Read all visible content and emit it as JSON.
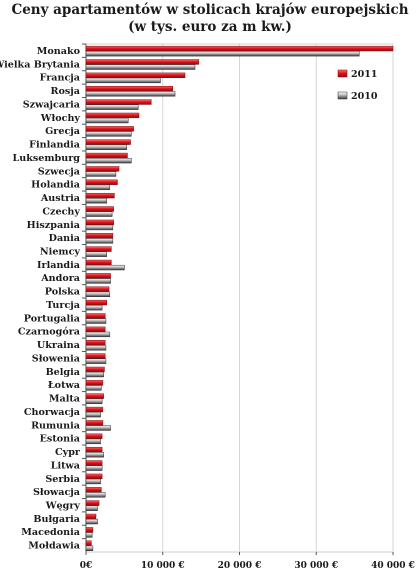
{
  "chart_data": {
    "type": "bar",
    "orientation": "horizontal",
    "title": "Ceny apartamentów w stolicach krajów europejskich",
    "subtitle": "(w tys. euro za m kw.)",
    "xlabel": "",
    "ylabel": "",
    "xlim": [
      0,
      40000
    ],
    "x_ticks": [
      0,
      10000,
      20000,
      30000,
      40000
    ],
    "x_tick_labels": [
      "0€",
      "10 000 €",
      "20 000 €",
      "30 000 €",
      "40 000 €"
    ],
    "grid": true,
    "legend_position": "top-right",
    "categories": [
      "Monako",
      "Wielka Brytania",
      "Francja",
      "Rosja",
      "Szwajcaria",
      "Włochy",
      "Grecja",
      "Finlandia",
      "Luksemburg",
      "Szwecja",
      "Holandia",
      "Austria",
      "Czechy",
      "Hiszpania",
      "Dania",
      "Niemcy",
      "Irlandia",
      "Andora",
      "Polska",
      "Turcja",
      "Portugalia",
      "Czarnogóra",
      "Ukraina",
      "Słowenia",
      "Belgia",
      "Łotwa",
      "Malta",
      "Chorwacja",
      "Rumunia",
      "Estonia",
      "Cypr",
      "Litwa",
      "Serbia",
      "Słowacja",
      "Węgry",
      "Bułgaria",
      "Macedonia",
      "Mołdawia"
    ],
    "series": [
      {
        "name": "2011",
        "color": "#e0141e",
        "values": [
          40000,
          14700,
          12900,
          11300,
          8500,
          6900,
          6200,
          5800,
          5400,
          4300,
          4100,
          3700,
          3600,
          3600,
          3500,
          3300,
          3300,
          3200,
          3000,
          2700,
          2500,
          2500,
          2500,
          2500,
          2400,
          2200,
          2300,
          2200,
          2200,
          2100,
          2100,
          2100,
          2100,
          2000,
          1700,
          1300,
          900,
          700
        ]
      },
      {
        "name": "2010",
        "color": "#a0a0a0",
        "values": [
          35600,
          14200,
          9700,
          11600,
          6800,
          5500,
          5900,
          5300,
          5900,
          3900,
          3100,
          2700,
          3400,
          3500,
          3500,
          2700,
          5000,
          3200,
          3100,
          2100,
          2600,
          3100,
          2600,
          2600,
          2300,
          2000,
          2100,
          1900,
          3200,
          1900,
          2300,
          2100,
          1900,
          2500,
          1500,
          1500,
          800,
          900
        ]
      }
    ]
  }
}
